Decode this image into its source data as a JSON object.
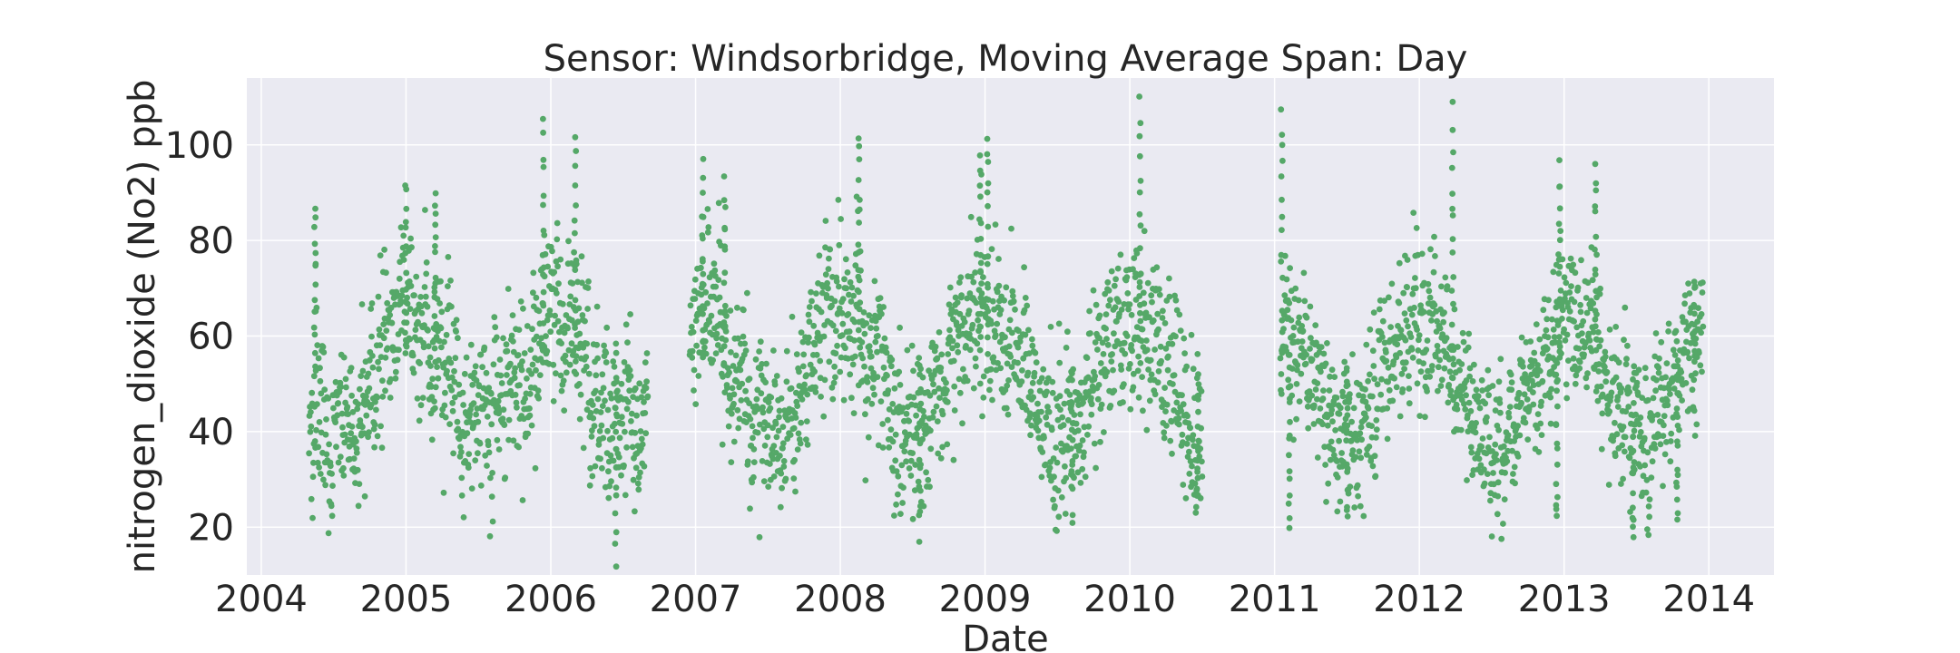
{
  "chart_data": {
    "type": "scatter",
    "title": "Sensor: Windsorbridge, Moving Average Span: Day",
    "xlabel": "Date",
    "ylabel": "nitrogen_dioxide (No2) ppb",
    "xlim": [
      2003.9,
      2014.45
    ],
    "ylim": [
      10,
      114
    ],
    "x_ticks": [
      2004,
      2005,
      2006,
      2007,
      2008,
      2009,
      2010,
      2011,
      2012,
      2013,
      2014
    ],
    "x_tick_labels": [
      "2004",
      "2005",
      "2006",
      "2007",
      "2008",
      "2009",
      "2010",
      "2011",
      "2012",
      "2013",
      "2014"
    ],
    "y_ticks": [
      20,
      40,
      60,
      80,
      100
    ],
    "y_tick_labels": [
      "20",
      "40",
      "60",
      "80",
      "100"
    ],
    "grid": true,
    "point_color": "#55a868",
    "background_color": "#eaeaf2",
    "series": [
      {
        "name": "nitrogen_dioxide",
        "segments": [
          {
            "start": 2004.33,
            "end": 2006.67,
            "mean": 52,
            "amp": 12,
            "spread": 15,
            "min": 14,
            "max": 105
          },
          {
            "start": 2006.96,
            "end": 2010.5,
            "mean": 53,
            "amp": 13,
            "spread": 15,
            "min": 17,
            "max": 109
          },
          {
            "start": 2011.04,
            "end": 2013.96,
            "mean": 50,
            "amp": 12,
            "spread": 14,
            "min": 17,
            "max": 108
          }
        ],
        "peaks": [
          [
            2004.37,
            87
          ],
          [
            2005.0,
            92
          ],
          [
            2005.2,
            91
          ],
          [
            2005.95,
            105
          ],
          [
            2006.17,
            101
          ],
          [
            2006.45,
            14
          ],
          [
            2007.05,
            96
          ],
          [
            2007.2,
            92
          ],
          [
            2008.13,
            103
          ],
          [
            2008.55,
            18
          ],
          [
            2008.97,
            99
          ],
          [
            2009.02,
            102
          ],
          [
            2009.6,
            22
          ],
          [
            2010.07,
            109
          ],
          [
            2010.47,
            25
          ],
          [
            2011.05,
            108
          ],
          [
            2011.1,
            20
          ],
          [
            2011.5,
            22
          ],
          [
            2012.23,
            106
          ],
          [
            2012.95,
            21
          ],
          [
            2012.97,
            95
          ],
          [
            2013.22,
            95
          ],
          [
            2013.48,
            17
          ],
          [
            2013.78,
            21
          ],
          [
            2013.9,
            72
          ]
        ],
        "n_points": 3200
      }
    ]
  }
}
